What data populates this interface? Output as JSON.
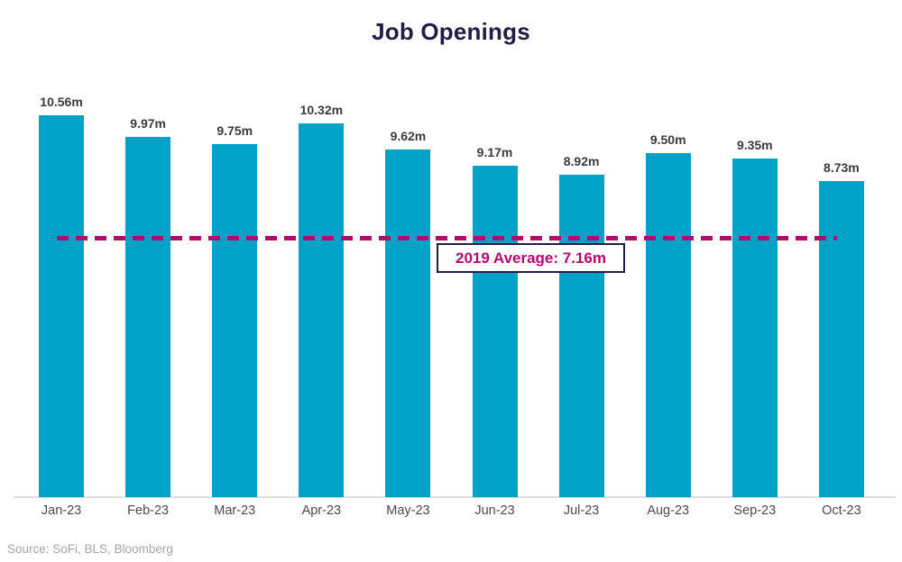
{
  "chart_data": {
    "type": "bar",
    "title": "Job Openings",
    "categories": [
      "Jan-23",
      "Feb-23",
      "Mar-23",
      "Apr-23",
      "May-23",
      "Jun-23",
      "Jul-23",
      "Aug-23",
      "Sep-23",
      "Oct-23"
    ],
    "values": [
      10.56,
      9.97,
      9.75,
      10.32,
      9.62,
      9.17,
      8.92,
      9.5,
      9.35,
      8.73
    ],
    "data_labels": [
      "10.56m",
      "9.97m",
      "9.75m",
      "10.32m",
      "9.62m",
      "9.17m",
      "8.92m",
      "9.50m",
      "9.35m",
      "8.73m"
    ],
    "xlabel": "",
    "ylabel": "",
    "ylim": [
      0,
      11.5
    ],
    "grid": false,
    "legend": false,
    "reference_line": {
      "value": 7.16,
      "label": "2019 Average: 7.16m",
      "style": "dashed"
    },
    "source_note": "Source: SoFi, BLS, Bloomberg",
    "colors": {
      "bar": "#00a2c8",
      "reference_line": "#b5086e",
      "reference_text": "#b5086e",
      "title": "#221c46",
      "annotation_border": "#221c46",
      "data_label": "#3a3a3a",
      "axis_label": "#4a4a4a",
      "baseline": "#dedede",
      "source": "#a5a5a5",
      "background": "#ffffff"
    }
  }
}
